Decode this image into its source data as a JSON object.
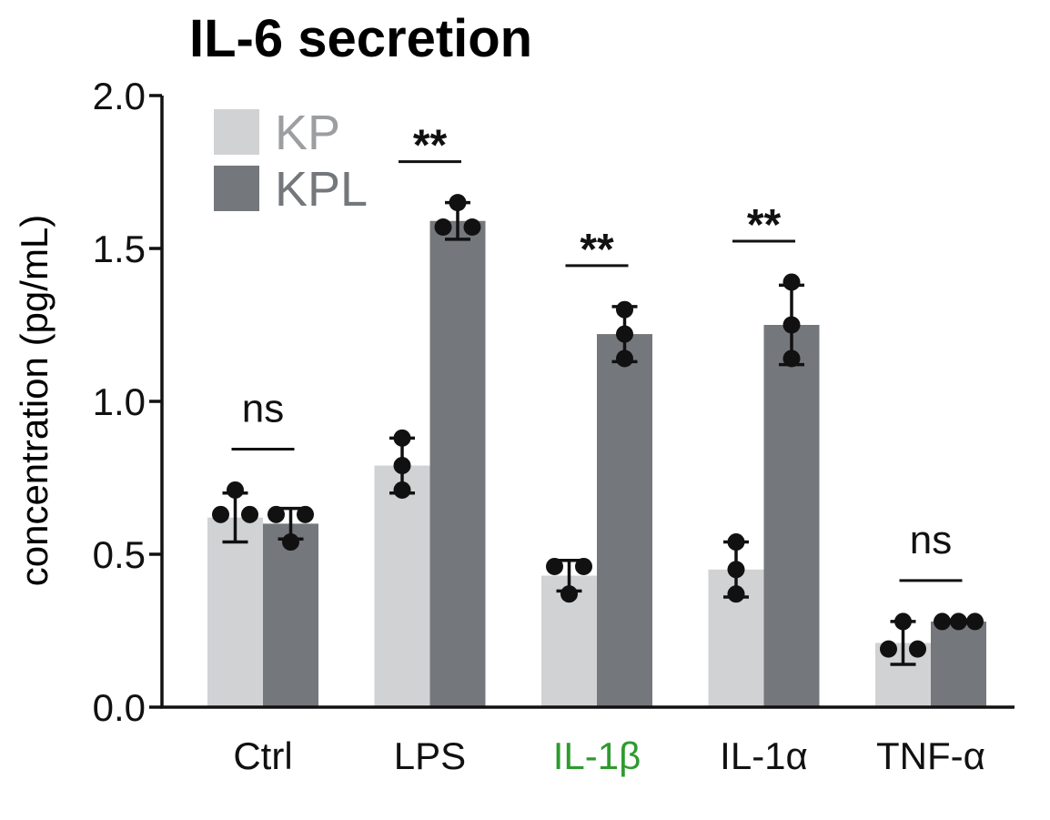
{
  "chart_data": {
    "type": "bar",
    "title": "IL-6 secretion",
    "ylabel": "concentration (pg/mL)",
    "xlabel": "",
    "ylim": [
      0,
      2.0
    ],
    "yticks": [
      "0.0",
      "0.5",
      "1.0",
      "1.5",
      "2.0"
    ],
    "ytick_values": [
      0,
      0.5,
      1.0,
      1.5,
      2.0
    ],
    "categories": [
      "Ctrl",
      "LPS",
      "IL-1β",
      "IL-1α",
      "TNF-α"
    ],
    "category_colors": [
      "#111111",
      "#111111",
      "#2e9a2e",
      "#111111",
      "#111111"
    ],
    "series": [
      {
        "name": "KP",
        "color": "#d1d2d4",
        "values": [
          0.62,
          0.79,
          0.43,
          0.45,
          0.21
        ],
        "errors": [
          0.08,
          0.09,
          0.05,
          0.09,
          0.07
        ],
        "points": [
          [
            0.71,
            0.63,
            0.63
          ],
          [
            0.88,
            0.79,
            0.71
          ],
          [
            0.46,
            0.46,
            0.37
          ],
          [
            0.54,
            0.45,
            0.37
          ],
          [
            0.28,
            0.19,
            0.19
          ]
        ]
      },
      {
        "name": "KPL",
        "color": "#74777b",
        "values": [
          0.6,
          1.59,
          1.22,
          1.25,
          0.28
        ],
        "errors": [
          0.05,
          0.06,
          0.09,
          0.13,
          0.0
        ],
        "points": [
          [
            0.63,
            0.63,
            0.54
          ],
          [
            1.65,
            1.57,
            1.57
          ],
          [
            1.3,
            1.22,
            1.14
          ],
          [
            1.39,
            1.25,
            1.14
          ],
          [
            0.28,
            0.28,
            0.28
          ]
        ]
      }
    ],
    "annotations": [
      "ns",
      "**",
      "**",
      "**",
      "ns"
    ],
    "grid": false,
    "legend": "top-left"
  }
}
